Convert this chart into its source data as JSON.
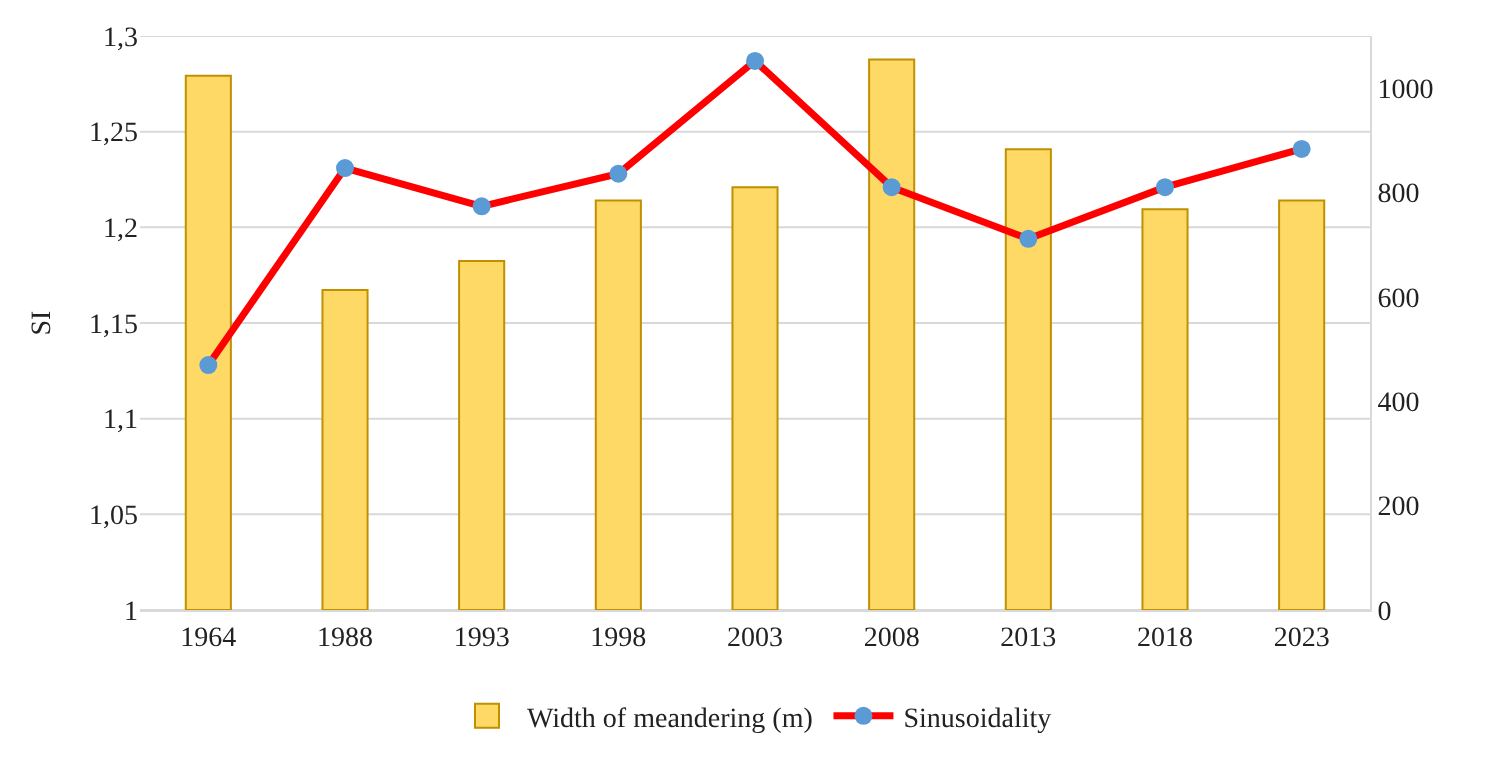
{
  "chart_data": {
    "type": "bar",
    "ylabel": "SI",
    "categories": [
      "1964",
      "1988",
      "1993",
      "1998",
      "2003",
      "2008",
      "2013",
      "2018",
      "2023"
    ],
    "series": [
      {
        "name": "Width of meandering (m)",
        "axis": "y2",
        "color": "#ffd966",
        "values": [
          1024,
          613,
          669,
          785,
          810,
          1055,
          883,
          768,
          785
        ]
      },
      {
        "name": "Sinusoidality",
        "type": "line",
        "axis": "y",
        "color": "#ff0000",
        "values": [
          1.128,
          1.231,
          1.211,
          1.228,
          1.287,
          1.221,
          1.194,
          1.221,
          1.241
        ]
      }
    ],
    "ylim": [
      1,
      1.3
    ],
    "yticks": [
      1,
      {
        "value": 1.05,
        "label": "1,05"
      },
      {
        "value": 1.1,
        "label": "1,1"
      },
      {
        "value": 1.15,
        "label": "1,15"
      },
      {
        "value": 1.2,
        "label": "1,2"
      },
      {
        "value": 1.25,
        "label": "1,25"
      },
      {
        "value": 1.3,
        "label": "1,3"
      }
    ],
    "y2lim": [
      0,
      1100
    ],
    "y2ticks": [
      0,
      200,
      400,
      600,
      800,
      1000
    ],
    "grid": "y",
    "legend": "bottom",
    "marker": "circle",
    "line_style": "solid"
  }
}
